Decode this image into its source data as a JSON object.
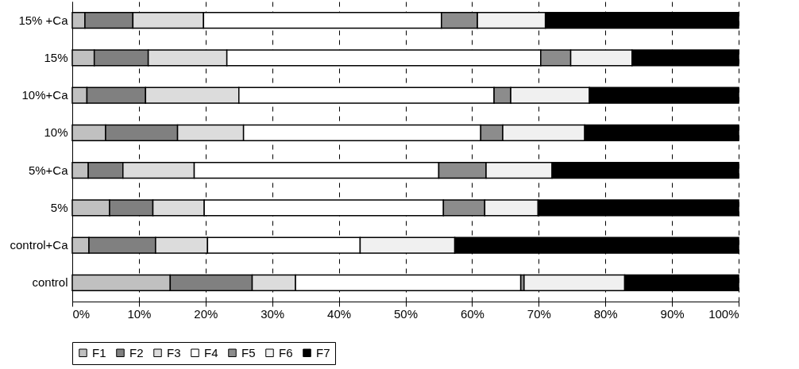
{
  "chart_data": {
    "type": "bar",
    "orientation": "horizontal",
    "stacked": true,
    "categories": [
      "15% +Ca",
      "15%",
      "10%+Ca",
      "10%",
      "5%+Ca",
      "5%",
      "control+Ca",
      "control"
    ],
    "series": [
      {
        "name": "F1",
        "color": "#c0c0c0",
        "values": [
          1.9,
          3.3,
          2.2,
          5.0,
          2.4,
          5.6,
          2.5,
          14.7
        ]
      },
      {
        "name": "F2",
        "color": "#808080",
        "values": [
          7.2,
          8.1,
          8.8,
          10.8,
          5.2,
          6.5,
          10.0,
          12.3
        ]
      },
      {
        "name": "F3",
        "color": "#dcdcdc",
        "values": [
          10.6,
          11.8,
          14.0,
          9.9,
          10.7,
          7.7,
          7.8,
          6.5
        ]
      },
      {
        "name": "F4",
        "color": "#ffffff",
        "values": [
          35.7,
          47.1,
          38.3,
          35.6,
          36.7,
          35.9,
          22.9,
          33.8
        ]
      },
      {
        "name": "F5",
        "color": "#8c8c8c",
        "values": [
          5.4,
          4.5,
          2.5,
          3.3,
          7.1,
          6.2,
          null,
          0.5
        ]
      },
      {
        "name": "F6",
        "color": "#f0f0f0",
        "values": [
          10.2,
          9.2,
          11.8,
          12.3,
          9.9,
          8.0,
          14.2,
          15.1
        ]
      },
      {
        "name": "F7",
        "color": "#000000",
        "values": [
          29.0,
          16.0,
          22.4,
          23.1,
          28.0,
          30.1,
          42.6,
          17.1
        ]
      }
    ],
    "xlim": [
      0,
      100
    ],
    "xticks": [
      {
        "value": 0,
        "label": "0%"
      },
      {
        "value": 10,
        "label": "10%"
      },
      {
        "value": 20,
        "label": "20%"
      },
      {
        "value": 30,
        "label": "30%"
      },
      {
        "value": 40,
        "label": "40%"
      },
      {
        "value": 50,
        "label": "50%"
      },
      {
        "value": 60,
        "label": "60%"
      },
      {
        "value": 70,
        "label": "70%"
      },
      {
        "value": 80,
        "label": "80%"
      },
      {
        "value": 90,
        "label": "90%"
      },
      {
        "value": 100,
        "label": "100%"
      }
    ],
    "grid": "x",
    "legend": "bottom"
  }
}
